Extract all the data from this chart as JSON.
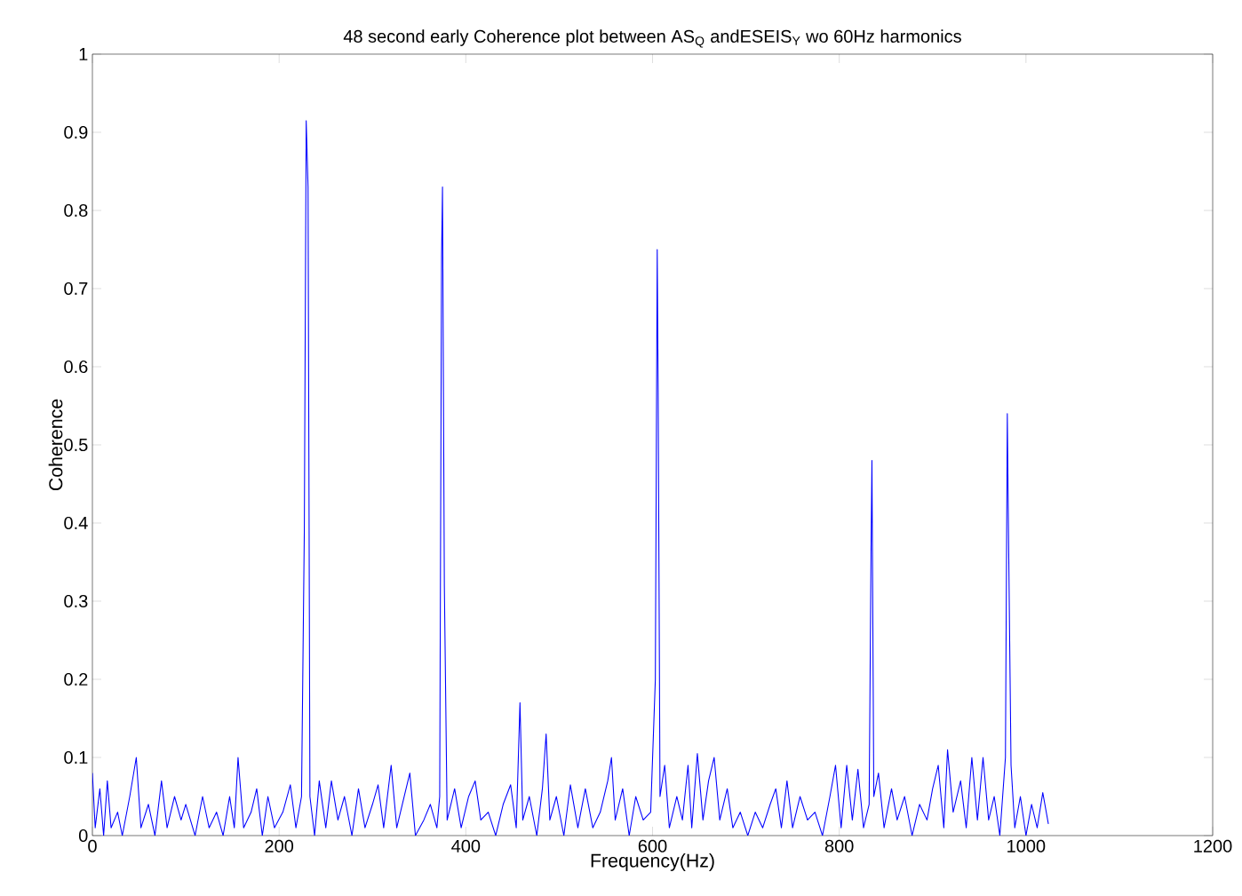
{
  "chart_data": {
    "type": "line",
    "title": "48 second early Coherence plot between AS$_{Q}$ andESEIS$_{Y}$ wo 60Hz harmonics",
    "xlabel": "Frequency(Hz)",
    "ylabel": "Coherence",
    "xlim": [
      0,
      1200
    ],
    "ylim": [
      0,
      1
    ],
    "xticks": [
      0,
      200,
      400,
      600,
      800,
      1000,
      1200
    ],
    "yticks": [
      0,
      0.1,
      0.2,
      0.3,
      0.4,
      0.5,
      0.6,
      0.7,
      0.8,
      0.9,
      1
    ],
    "line_style": "solid",
    "series": [
      {
        "color": "#0000ff",
        "x": [
          0,
          3,
          8,
          12,
          16,
          20,
          27,
          32,
          40,
          47,
          52,
          60,
          67,
          74,
          80,
          88,
          95,
          100,
          110,
          118,
          125,
          133,
          140,
          147,
          152,
          156,
          162,
          170,
          176,
          182,
          188,
          195,
          204,
          212,
          218,
          224,
          227,
          229,
          231,
          233,
          238,
          243,
          250,
          256,
          263,
          270,
          278,
          285,
          292,
          300,
          306,
          312,
          320,
          326,
          334,
          340,
          346,
          355,
          362,
          369,
          372,
          374,
          375,
          377,
          380,
          388,
          395,
          403,
          410,
          416,
          424,
          432,
          440,
          448,
          454,
          458,
          461,
          468,
          476,
          482,
          486,
          490,
          497,
          505,
          512,
          520,
          528,
          536,
          544,
          552,
          556,
          560,
          568,
          575,
          582,
          590,
          598,
          603,
          605,
          606,
          608,
          613,
          618,
          626,
          632,
          638,
          642,
          648,
          654,
          660,
          666,
          672,
          680,
          686,
          694,
          702,
          710,
          718,
          726,
          732,
          738,
          744,
          750,
          758,
          766,
          774,
          782,
          790,
          796,
          802,
          808,
          814,
          820,
          826,
          832,
          834,
          835,
          837,
          842,
          848,
          856,
          862,
          870,
          878,
          886,
          894,
          900,
          906,
          912,
          916,
          922,
          930,
          936,
          942,
          948,
          954,
          960,
          966,
          972,
          978,
          980,
          981,
          984,
          988,
          994,
          1000,
          1006,
          1012,
          1018,
          1024
        ],
        "values": [
          0.08,
          0.01,
          0.06,
          0.0,
          0.07,
          0.01,
          0.03,
          0.0,
          0.05,
          0.1,
          0.01,
          0.04,
          0.0,
          0.07,
          0.01,
          0.05,
          0.02,
          0.04,
          0.0,
          0.05,
          0.01,
          0.03,
          0.0,
          0.05,
          0.01,
          0.1,
          0.01,
          0.03,
          0.06,
          0.0,
          0.05,
          0.01,
          0.03,
          0.065,
          0.01,
          0.05,
          0.39,
          0.915,
          0.83,
          0.05,
          0.0,
          0.07,
          0.01,
          0.07,
          0.02,
          0.05,
          0.0,
          0.06,
          0.01,
          0.04,
          0.065,
          0.01,
          0.09,
          0.01,
          0.05,
          0.08,
          0.0,
          0.02,
          0.04,
          0.01,
          0.05,
          0.74,
          0.83,
          0.32,
          0.02,
          0.06,
          0.01,
          0.05,
          0.07,
          0.02,
          0.03,
          0.0,
          0.04,
          0.065,
          0.01,
          0.17,
          0.02,
          0.05,
          0.0,
          0.06,
          0.13,
          0.02,
          0.05,
          0.0,
          0.065,
          0.01,
          0.06,
          0.01,
          0.03,
          0.07,
          0.1,
          0.02,
          0.06,
          0.0,
          0.05,
          0.02,
          0.03,
          0.2,
          0.75,
          0.57,
          0.05,
          0.09,
          0.01,
          0.05,
          0.02,
          0.09,
          0.01,
          0.105,
          0.02,
          0.07,
          0.1,
          0.02,
          0.06,
          0.01,
          0.03,
          0.0,
          0.03,
          0.01,
          0.04,
          0.06,
          0.01,
          0.07,
          0.01,
          0.05,
          0.02,
          0.03,
          0.0,
          0.05,
          0.09,
          0.01,
          0.09,
          0.02,
          0.085,
          0.01,
          0.04,
          0.36,
          0.48,
          0.05,
          0.08,
          0.01,
          0.06,
          0.02,
          0.05,
          0.0,
          0.04,
          0.02,
          0.06,
          0.09,
          0.01,
          0.11,
          0.03,
          0.07,
          0.01,
          0.1,
          0.02,
          0.1,
          0.02,
          0.05,
          0.0,
          0.1,
          0.54,
          0.42,
          0.09,
          0.01,
          0.05,
          0.0,
          0.04,
          0.01,
          0.055,
          0.015
        ]
      }
    ]
  }
}
